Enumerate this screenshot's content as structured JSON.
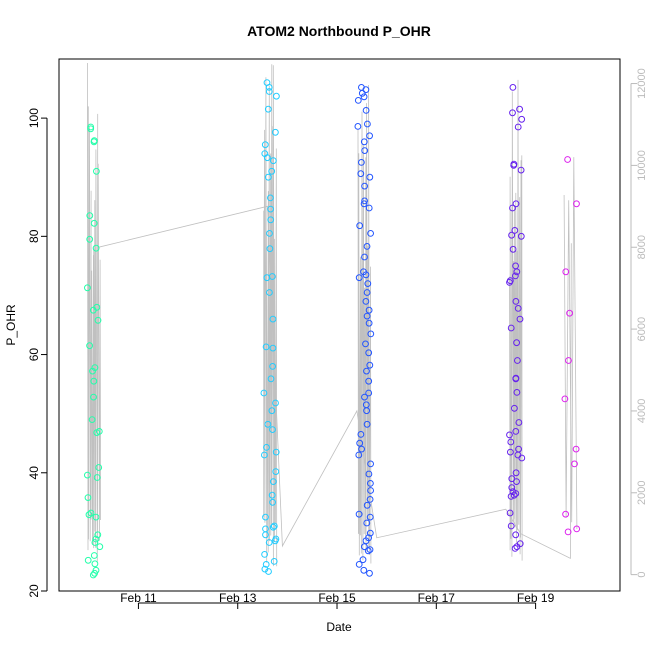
{
  "chart_data": {
    "type": "scatter",
    "title": "ATOM2 Northbound P_OHR",
    "xlabel": "Date",
    "ylabel": "P_OHR",
    "x_range_days": [
      9.4,
      20.7
    ],
    "ylim": [
      20,
      110
    ],
    "y_ticks": [
      20,
      40,
      60,
      80,
      100
    ],
    "x_ticks": [
      {
        "day": 11,
        "label": "Feb 11"
      },
      {
        "day": 13,
        "label": "Feb 13"
      },
      {
        "day": 15,
        "label": "Feb 15"
      },
      {
        "day": 17,
        "label": "Feb 17"
      },
      {
        "day": 19,
        "label": "Feb 19"
      }
    ],
    "y2lim": [
      -400,
      12600
    ],
    "y2_ticks": [
      0,
      2000,
      4000,
      6000,
      8000,
      10000,
      12000
    ],
    "y2_color": "#bbbbbb",
    "grid": false,
    "clusters": [
      {
        "day": 10.1,
        "color": "#22ffaa",
        "values": [
          98.5,
          98.2,
          96.2,
          96.0,
          91.0,
          83.5,
          82.2,
          79.5,
          78.0,
          71.3,
          68.0,
          67.5,
          65.8,
          61.5,
          57.8,
          57.2,
          55.5,
          52.8,
          49.0,
          47.0,
          46.8,
          40.9,
          39.6,
          39.2,
          35.8,
          33.2,
          32.9,
          32.5,
          29.5,
          28.8,
          28.2,
          27.5,
          26.0,
          25.2,
          24.6,
          23.5,
          23.0,
          22.7
        ]
      },
      {
        "day": 13.65,
        "color": "#22ccff",
        "values": [
          106.0,
          105.2,
          104.5,
          103.7,
          101.5,
          97.6,
          95.5,
          94.0,
          93.3,
          92.8,
          91.0,
          90.0,
          86.5,
          84.6,
          82.8,
          80.5,
          77.9,
          73.2,
          73.0,
          70.5,
          66.0,
          61.3,
          61.1,
          58.0,
          55.9,
          53.5,
          51.8,
          50.5,
          48.2,
          47.3,
          44.3,
          43.5,
          43.0,
          40.2,
          38.5,
          36.2,
          35.0,
          32.5,
          31.0,
          30.8,
          30.5,
          29.5,
          28.8,
          28.5,
          28.2,
          26.2,
          25.0,
          24.5,
          23.7,
          23.3
        ]
      },
      {
        "day": 15.55,
        "color": "#2255ff",
        "values": [
          105.2,
          104.8,
          104.2,
          103.6,
          103.0,
          101.3,
          99.0,
          98.6,
          97.0,
          96.0,
          94.5,
          92.5,
          90.6,
          90.0,
          88.5,
          86.0,
          85.5,
          84.8,
          81.8,
          80.5,
          78.3,
          76.5,
          74.0,
          73.5,
          73.0,
          72.0,
          70.5,
          69.0,
          67.5,
          66.5,
          65.3,
          63.5,
          61.8,
          60.3,
          58.2,
          57.2,
          55.5,
          53.5,
          52.8,
          51.5,
          50.5,
          48.2,
          46.5,
          45.0,
          44.0,
          43.0,
          41.5,
          39.8,
          38.2,
          37.0,
          35.5,
          34.5,
          33.0,
          32.5,
          31.5,
          29.8,
          29.0,
          28.5,
          27.5,
          27.0,
          26.8,
          25.3,
          24.5,
          23.5,
          23.0
        ]
      },
      {
        "day": 18.6,
        "color": "#6622ee",
        "values": [
          105.2,
          101.5,
          100.9,
          99.8,
          98.5,
          92.2,
          92.0,
          91.2,
          85.5,
          84.8,
          81.0,
          80.2,
          80.0,
          77.8,
          75.0,
          74.0,
          73.3,
          72.5,
          72.2,
          69.0,
          67.8,
          66.0,
          64.5,
          62.0,
          59.0,
          56.0,
          55.9,
          53.6,
          50.9,
          48.5,
          47.0,
          46.4,
          45.2,
          44.0,
          43.5,
          43.0,
          42.5,
          40.0,
          39.0,
          38.5,
          37.5,
          36.8,
          36.5,
          36.2,
          36.0,
          33.2,
          31.0,
          29.5,
          28.0,
          27.5,
          27.2
        ]
      },
      {
        "day": 19.7,
        "color": "#dd22ee",
        "values": [
          93.0,
          85.5,
          74.0,
          67.0,
          59.0,
          52.5,
          44.0,
          41.5,
          33.0,
          30.5,
          30.0
        ]
      }
    ],
    "secondary_line": {
      "color": "#c0c0c0",
      "connections": [
        [
          10.2,
          8000
        ],
        [
          13.6,
          9000
        ],
        [
          13.9,
          700
        ],
        [
          15.4,
          4000
        ],
        [
          15.8,
          900
        ],
        [
          18.4,
          1600
        ],
        [
          18.7,
          1000
        ],
        [
          19.7,
          400
        ],
        [
          19.72,
          8100
        ]
      ]
    }
  }
}
